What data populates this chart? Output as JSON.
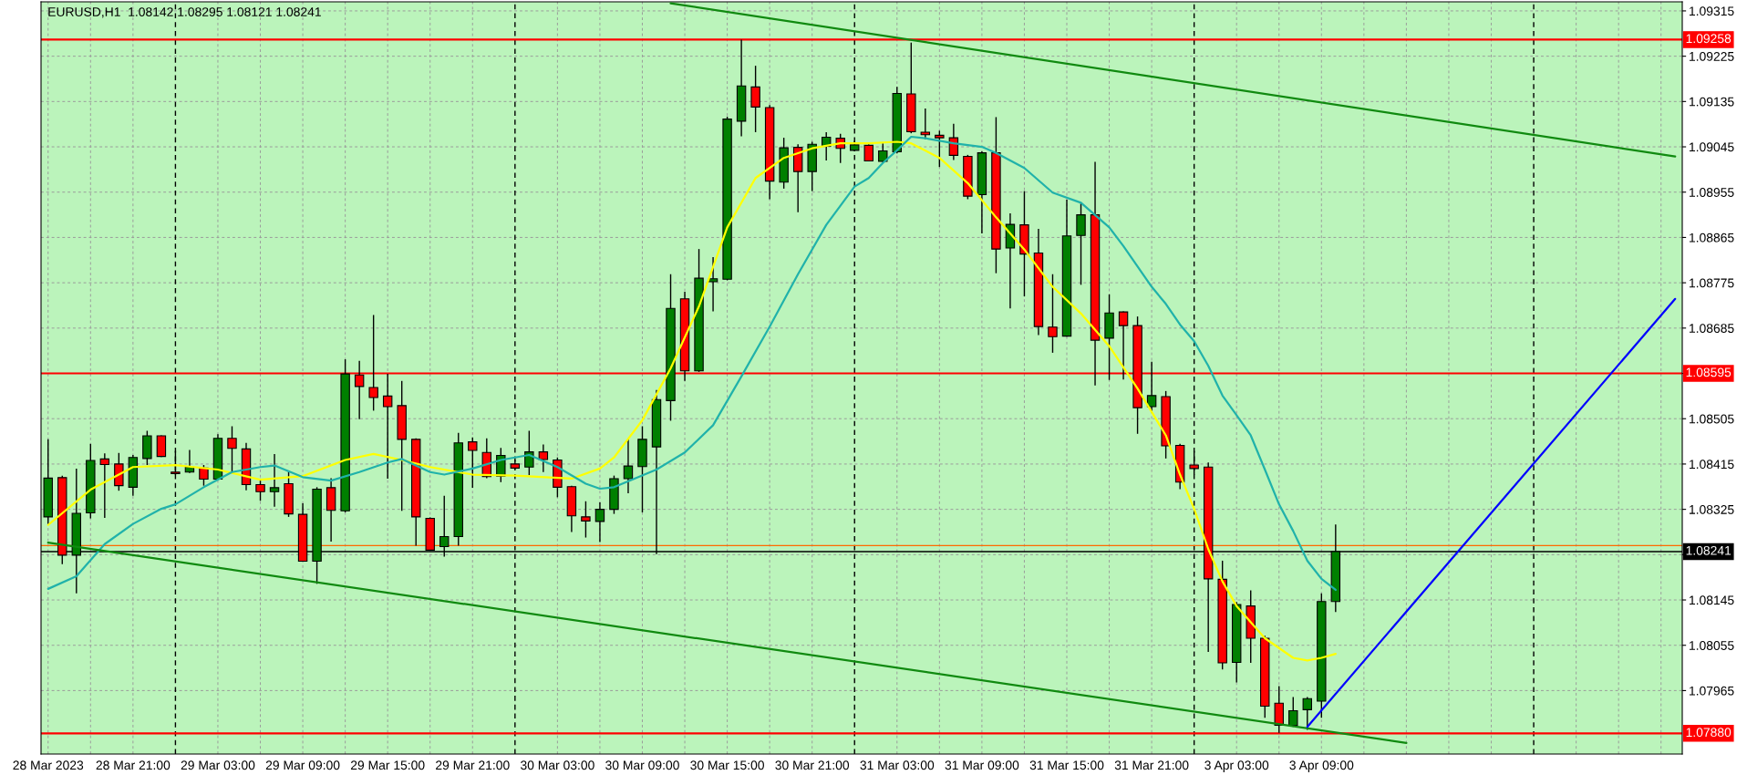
{
  "chart_data": {
    "type": "candlestick",
    "title": "EURUSD,H1  1.08142 1.08295 1.08121 1.08241",
    "categories": [
      "28 Mar 2023",
      null,
      null,
      null,
      null,
      null,
      "28 Mar 21:00",
      null,
      null,
      null,
      null,
      null,
      "29 Mar 03:00",
      null,
      null,
      null,
      null,
      null,
      "29 Mar 09:00",
      null,
      null,
      null,
      null,
      null,
      "29 Mar 15:00",
      null,
      null,
      null,
      null,
      null,
      "29 Mar 21:00",
      null,
      null,
      null,
      null,
      null,
      "30 Mar 03:00",
      null,
      null,
      null,
      null,
      null,
      "30 Mar 09:00",
      null,
      null,
      null,
      null,
      null,
      "30 Mar 15:00",
      null,
      null,
      null,
      null,
      null,
      "30 Mar 21:00",
      null,
      null,
      null,
      null,
      null,
      "31 Mar 03:00",
      null,
      null,
      null,
      null,
      null,
      "31 Mar 09:00",
      null,
      null,
      null,
      null,
      null,
      "31 Mar 15:00",
      null,
      null,
      null,
      null,
      null,
      "31 Mar 21:00",
      null,
      null,
      null,
      null,
      null,
      "3 Apr 03:00",
      null,
      null,
      null,
      null,
      null,
      "3 Apr 09:00",
      null,
      null,
      null,
      null,
      null,
      null,
      null,
      null,
      null,
      null,
      null,
      null,
      null,
      null,
      null,
      null,
      null,
      null,
      null,
      null,
      null,
      null,
      null,
      null,
      null
    ],
    "ohlc": [
      [
        1.0831,
        1.08464,
        1.08296,
        1.08387
      ],
      [
        1.08388,
        1.08392,
        1.08216,
        1.08234
      ],
      [
        1.08234,
        1.08406,
        1.08158,
        1.08317
      ],
      [
        1.08318,
        1.08455,
        1.08307,
        1.08422
      ],
      [
        1.08425,
        1.08436,
        1.08308,
        1.08414
      ],
      [
        1.08415,
        1.08437,
        1.08362,
        1.08372
      ],
      [
        1.08369,
        1.08433,
        1.08352,
        1.08428
      ],
      [
        1.08426,
        1.08481,
        1.08413,
        1.08471
      ],
      [
        1.08471,
        1.08472,
        1.08429,
        1.0843
      ],
      [
        1.08399,
        1.08441,
        1.08394,
        1.08396
      ],
      [
        1.08399,
        1.08443,
        1.08397,
        1.08409
      ],
      [
        1.08407,
        1.08413,
        1.08372,
        1.08385
      ],
      [
        1.08385,
        1.08474,
        1.08384,
        1.08466
      ],
      [
        1.08466,
        1.0849,
        1.08399,
        1.08446
      ],
      [
        1.08445,
        1.08457,
        1.08363,
        1.08374
      ],
      [
        1.08374,
        1.08386,
        1.08342,
        1.0836
      ],
      [
        1.0836,
        1.08435,
        1.0833,
        1.08368
      ],
      [
        1.08376,
        1.08402,
        1.0831,
        1.08316
      ],
      [
        1.08315,
        1.08337,
        1.08221,
        1.08222
      ],
      [
        1.08222,
        1.08369,
        1.08177,
        1.08365
      ],
      [
        1.08368,
        1.08387,
        1.08261,
        1.08323
      ],
      [
        1.08322,
        1.08623,
        1.08319,
        1.08594
      ],
      [
        1.08592,
        1.0862,
        1.08504,
        1.08569
      ],
      [
        1.08567,
        1.08711,
        1.08521,
        1.08547
      ],
      [
        1.0855,
        1.08594,
        1.08386,
        1.08529
      ],
      [
        1.08531,
        1.0858,
        1.08322,
        1.08464
      ],
      [
        1.08464,
        1.08466,
        1.08253,
        1.0831
      ],
      [
        1.08307,
        1.08309,
        1.08243,
        1.08244
      ],
      [
        1.08251,
        1.08352,
        1.08231,
        1.08271
      ],
      [
        1.08271,
        1.08477,
        1.08253,
        1.08457
      ],
      [
        1.08459,
        1.08468,
        1.08368,
        1.08442
      ],
      [
        1.08438,
        1.08466,
        1.08387,
        1.0839
      ],
      [
        1.08391,
        1.08447,
        1.08379,
        1.08432
      ],
      [
        1.08415,
        1.08423,
        1.08405,
        1.08407
      ],
      [
        1.08409,
        1.08481,
        1.08393,
        1.08439
      ],
      [
        1.08439,
        1.08454,
        1.08399,
        1.08424
      ],
      [
        1.08423,
        1.08428,
        1.08349,
        1.08369
      ],
      [
        1.0837,
        1.08372,
        1.0828,
        1.08312
      ],
      [
        1.0831,
        1.08341,
        1.08269,
        1.08302
      ],
      [
        1.08301,
        1.08339,
        1.0826,
        1.08325
      ],
      [
        1.08325,
        1.08392,
        1.08316,
        1.08386
      ],
      [
        1.08386,
        1.08464,
        1.08357,
        1.08411
      ],
      [
        1.0841,
        1.0849,
        1.08319,
        1.08464
      ],
      [
        1.08449,
        1.08562,
        1.08236,
        1.08543
      ],
      [
        1.08541,
        1.08792,
        1.08501,
        1.08724
      ],
      [
        1.08743,
        1.08757,
        1.0858,
        1.086
      ],
      [
        1.086,
        1.08842,
        1.08598,
        1.08784
      ],
      [
        1.08777,
        1.08826,
        1.08718,
        1.08783
      ],
      [
        1.08782,
        1.09105,
        1.0878,
        1.091
      ],
      [
        1.09096,
        1.09258,
        1.09066,
        1.09166
      ],
      [
        1.09164,
        1.09206,
        1.09074,
        1.09124
      ],
      [
        1.09123,
        1.09128,
        1.08941,
        1.08977
      ],
      [
        1.08975,
        1.09063,
        1.08962,
        1.09043
      ],
      [
        1.09044,
        1.0905,
        1.08915,
        1.08996
      ],
      [
        1.08996,
        1.09055,
        1.08957,
        1.0905
      ],
      [
        1.09046,
        1.09074,
        1.09018,
        1.09064
      ],
      [
        1.09062,
        1.09071,
        1.09013,
        1.09042
      ],
      [
        1.09038,
        1.09057,
        1.09036,
        1.09049
      ],
      [
        1.09048,
        1.0905,
        1.09016,
        1.09017
      ],
      [
        1.09016,
        1.09052,
        1.09014,
        1.09037
      ],
      [
        1.09035,
        1.09164,
        1.09032,
        1.09151
      ],
      [
        1.0915,
        1.09252,
        1.09072,
        1.09075
      ],
      [
        1.09074,
        1.09121,
        1.0906,
        1.09069
      ],
      [
        1.09068,
        1.09077,
        1.09005,
        1.09063
      ],
      [
        1.09063,
        1.09091,
        1.09019,
        1.09028
      ],
      [
        1.09026,
        1.09029,
        1.08941,
        1.08947
      ],
      [
        1.0895,
        1.09036,
        1.08873,
        1.09033
      ],
      [
        1.09033,
        1.09104,
        1.08794,
        1.08842
      ],
      [
        1.08844,
        1.08913,
        1.08724,
        1.08891
      ],
      [
        1.0889,
        1.08957,
        1.08748,
        1.08832
      ],
      [
        1.08834,
        1.08882,
        1.08671,
        1.08688
      ],
      [
        1.08687,
        1.08792,
        1.08636,
        1.08668
      ],
      [
        1.08669,
        1.0894,
        1.08668,
        1.08868
      ],
      [
        1.08869,
        1.08934,
        1.08771,
        1.0891
      ],
      [
        1.0891,
        1.09015,
        1.08571,
        1.08661
      ],
      [
        1.08665,
        1.08752,
        1.08582,
        1.08715
      ],
      [
        1.08717,
        1.08718,
        1.08583,
        1.0869
      ],
      [
        1.0869,
        1.08708,
        1.08475,
        1.08527
      ],
      [
        1.08529,
        1.08618,
        1.08517,
        1.08551
      ],
      [
        1.08549,
        1.0856,
        1.08426,
        1.08451
      ],
      [
        1.08452,
        1.08455,
        1.08365,
        1.08379
      ],
      [
        1.08413,
        1.08441,
        1.08394,
        1.08406
      ],
      [
        1.08409,
        1.08418,
        1.08042,
        1.08187
      ],
      [
        1.08186,
        1.08223,
        1.08007,
        1.0802
      ],
      [
        1.08021,
        1.08141,
        1.07981,
        1.08136
      ],
      [
        1.08133,
        1.08164,
        1.0802,
        1.08069
      ],
      [
        1.08069,
        1.08074,
        1.07911,
        1.07934
      ],
      [
        1.0794,
        1.07974,
        1.07881,
        1.07896
      ],
      [
        1.07896,
        1.07952,
        1.07893,
        1.07925
      ],
      [
        1.07927,
        1.07952,
        1.07887,
        1.07949
      ],
      [
        1.07944,
        1.08158,
        1.07911,
        1.08142
      ],
      [
        1.08142,
        1.08295,
        1.08121,
        1.08241
      ],
      null,
      null,
      null,
      null,
      null,
      null,
      null,
      null,
      null,
      null,
      null,
      null,
      null,
      null,
      null,
      null,
      null,
      null,
      null,
      null,
      null,
      null,
      null,
      null
    ],
    "colors": [
      "#008000",
      "#ff0000",
      "#008000",
      "#008000",
      "#ff0000",
      "#ff0000",
      "#008000",
      "#008000",
      "#ff0000",
      "#ff0000",
      "#008000",
      "#ff0000",
      "#008000",
      "#ff0000",
      "#ff0000",
      "#ff0000",
      "#008000",
      "#ff0000",
      "#ff0000",
      "#008000",
      "#ff0000",
      "#008000",
      "#ff0000",
      "#ff0000",
      "#ff0000",
      "#ff0000",
      "#ff0000",
      "#ff0000",
      "#008000",
      "#008000",
      "#ff0000",
      "#ff0000",
      "#008000",
      "#ff0000",
      "#008000",
      "#ff0000",
      "#ff0000",
      "#ff0000",
      "#ff0000",
      "#008000",
      "#008000",
      "#008000",
      "#008000",
      "#008000",
      "#008000",
      "#ff0000",
      "#008000",
      "#008000",
      "#008000",
      "#008000",
      "#ff0000",
      "#ff0000",
      "#008000",
      "#ff0000",
      "#008000",
      "#008000",
      "#ff0000",
      "#008000",
      "#ff0000",
      "#008000",
      "#008000",
      "#ff0000",
      "#ff0000",
      "#ff0000",
      "#ff0000",
      "#ff0000",
      "#008000",
      "#ff0000",
      "#008000",
      "#ff0000",
      "#ff0000",
      "#ff0000",
      "#008000",
      "#008000",
      "#ff0000",
      "#008000",
      "#ff0000",
      "#ff0000",
      "#008000",
      "#ff0000",
      "#ff0000",
      "#ff0000",
      "#ff0000",
      "#ff0000",
      "#008000",
      "#ff0000",
      "#ff0000",
      "#ff0000",
      "#008000",
      "#008000",
      "#008000",
      "#008000",
      null,
      null,
      null,
      null,
      null,
      null,
      null,
      null,
      null,
      null,
      null,
      null,
      null,
      null,
      null,
      null,
      null,
      null,
      null,
      null,
      null,
      null,
      null,
      null
    ],
    "series": [
      {
        "type": "line",
        "color": "#ffff00",
        "values": [
          1.08294,
          null,
          null,
          1.08364,
          null,
          null,
          1.08409,
          null,
          null,
          1.08413,
          null,
          null,
          1.08404,
          null,
          null,
          1.08384,
          null,
          null,
          1.08391,
          null,
          null,
          1.08423,
          null,
          1.08435,
          null,
          1.08423,
          null,
          1.08409,
          null,
          null,
          1.08394,
          null,
          null,
          1.08392,
          null,
          null,
          null,
          1.08386,
          null,
          1.08406,
          1.08428,
          null,
          1.08502,
          null,
          1.08605,
          null,
          1.08728,
          null,
          1.08885,
          null,
          1.08983,
          null,
          1.09023,
          null,
          1.09042,
          null,
          1.09052,
          null,
          1.09052,
          null,
          1.09055,
          1.09052,
          null,
          1.09023,
          null,
          1.08973,
          null,
          1.08905,
          null,
          1.08841,
          null,
          1.08767,
          null,
          1.08714,
          null,
          1.08649,
          null,
          1.08565,
          null,
          1.08472,
          1.08394,
          1.08326,
          1.08246,
          1.08182,
          1.08133,
          null,
          1.08069,
          null,
          1.0803,
          1.08025,
          1.0803,
          1.08038,
          null,
          null,
          null,
          null,
          null,
          null,
          null,
          null,
          null,
          null,
          null,
          null,
          null,
          null,
          null,
          null,
          null,
          null,
          null,
          null,
          null,
          null,
          null,
          null
        ]
      },
      {
        "type": "line",
        "color": "#20b2aa",
        "values": [
          1.08167,
          null,
          1.08192,
          null,
          1.08256,
          null,
          1.08296,
          null,
          1.08326,
          1.08335,
          null,
          1.08369,
          null,
          1.08399,
          null,
          1.08409,
          1.08412,
          null,
          1.08389,
          null,
          1.08382,
          null,
          1.08399,
          null,
          1.08418,
          1.08425,
          null,
          1.08399,
          1.08394,
          null,
          1.08406,
          null,
          1.08423,
          null,
          1.08433,
          null,
          1.08409,
          null,
          1.08376,
          1.08366,
          1.08369,
          null,
          null,
          1.08404,
          null,
          1.08438,
          null,
          1.08492,
          null,
          1.08589,
          null,
          1.08688,
          null,
          1.08792,
          null,
          1.0889,
          null,
          1.08966,
          1.08983,
          1.09013,
          1.09038,
          1.09065,
          1.09062,
          null,
          1.09052,
          null,
          1.09045,
          1.09033,
          null,
          1.09003,
          null,
          1.08954,
          null,
          1.08934,
          null,
          1.08885,
          1.08848,
          null,
          1.08767,
          1.08733,
          1.08692,
          1.08659,
          1.0861,
          1.08551,
          1.08512,
          1.08472,
          1.08404,
          1.08335,
          1.08282,
          1.08223,
          1.08187,
          1.08165,
          null,
          null,
          null,
          null,
          null,
          null,
          null,
          null,
          null,
          null,
          null,
          null,
          null,
          null,
          null,
          null,
          null,
          null,
          null,
          null,
          null,
          null,
          null,
          null
        ]
      },
      {
        "type": "line",
        "color": "#108a10",
        "values": [
          null,
          null,
          null,
          null,
          null,
          null,
          null,
          null,
          null,
          null,
          null,
          null,
          null,
          null,
          null,
          null,
          null,
          null,
          null,
          null,
          null,
          null,
          null,
          null,
          null,
          null,
          null,
          null,
          null,
          null,
          null,
          null,
          null,
          null,
          null,
          null,
          null,
          null,
          null,
          null,
          null,
          null,
          null,
          null,
          1.0933,
          null,
          null,
          null,
          null,
          null,
          null,
          null,
          null,
          null,
          null,
          null,
          null,
          null,
          null,
          null,
          null,
          null,
          null,
          null,
          null,
          null,
          null,
          null,
          null,
          null,
          null,
          null,
          null,
          null,
          null,
          null,
          null,
          null,
          null,
          null,
          null,
          null,
          null,
          null,
          null,
          null,
          null,
          null,
          null,
          null,
          null,
          null,
          null,
          null,
          null,
          null,
          null,
          null,
          null,
          null,
          null,
          null,
          null,
          null,
          null,
          null,
          null,
          null,
          null,
          null,
          null,
          null,
          null,
          null,
          null,
          1.09026
        ]
      },
      {
        "type": "line",
        "color": "#108a10",
        "values": [
          1.08259,
          null,
          null,
          null,
          null,
          null,
          null,
          null,
          null,
          null,
          null,
          null,
          null,
          null,
          null,
          null,
          null,
          null,
          null,
          null,
          null,
          null,
          null,
          null,
          null,
          null,
          null,
          null,
          null,
          null,
          null,
          null,
          null,
          null,
          null,
          null,
          null,
          null,
          null,
          null,
          null,
          null,
          null,
          null,
          null,
          null,
          null,
          null,
          null,
          null,
          null,
          null,
          null,
          null,
          null,
          null,
          null,
          null,
          null,
          null,
          null,
          null,
          null,
          null,
          null,
          null,
          null,
          null,
          null,
          null,
          null,
          null,
          null,
          null,
          null,
          null,
          null,
          null,
          null,
          null,
          null,
          null,
          null,
          null,
          null,
          null,
          null,
          null,
          null,
          null,
          null,
          null,
          null,
          null,
          null,
          null,
          1.07861,
          null,
          null,
          null,
          null,
          null,
          null,
          null,
          null,
          null,
          null,
          null,
          null,
          null,
          null,
          null,
          null,
          null,
          null,
          null
        ]
      },
      {
        "type": "line",
        "color": "#0000ff",
        "values": [
          null,
          null,
          null,
          null,
          null,
          null,
          null,
          null,
          null,
          null,
          null,
          null,
          null,
          null,
          null,
          null,
          null,
          null,
          null,
          null,
          null,
          null,
          null,
          null,
          null,
          null,
          null,
          null,
          null,
          null,
          null,
          null,
          null,
          null,
          null,
          null,
          null,
          null,
          null,
          null,
          null,
          null,
          null,
          null,
          null,
          null,
          null,
          null,
          null,
          null,
          null,
          null,
          null,
          null,
          null,
          null,
          null,
          null,
          null,
          null,
          null,
          null,
          null,
          null,
          null,
          null,
          null,
          null,
          null,
          null,
          null,
          null,
          null,
          null,
          null,
          null,
          null,
          null,
          null,
          null,
          null,
          null,
          null,
          null,
          null,
          null,
          null,
          null,
          null,
          1.07893,
          null,
          null,
          null,
          null,
          null,
          null,
          null,
          null,
          null,
          null,
          null,
          null,
          null,
          null,
          null,
          null,
          null,
          null,
          null,
          null,
          null,
          null,
          null,
          null,
          null,
          1.08743
        ]
      }
    ],
    "ylim": [
      1.07839,
      1.09333
    ],
    "yticks": [
      1.09315,
      1.09225,
      1.09135,
      1.09045,
      1.08955,
      1.08865,
      1.08775,
      1.08685,
      {
        "value": 1.08595,
        "label": null
      },
      1.08505,
      1.08415,
      1.08325,
      {
        "value": 1.08235,
        "label": null
      },
      1.08145,
      1.08055,
      1.07965
    ],
    "ref_lines": [
      {
        "axis": "y",
        "value": 1.09258,
        "label": "1.09258",
        "color": "#ff0000"
      },
      {
        "axis": "y",
        "value": 1.08595,
        "label": "1.08595",
        "color": "#ff0000"
      },
      {
        "axis": "y",
        "value": 1.0788,
        "label": "1.07880",
        "color": "#ff0000"
      },
      {
        "axis": "y",
        "value": 1.08253,
        "color": "#ff6a00"
      },
      {
        "axis": "y",
        "value": 1.08241,
        "label": "1.08241",
        "color": "#000000"
      }
    ],
    "grid": true
  }
}
